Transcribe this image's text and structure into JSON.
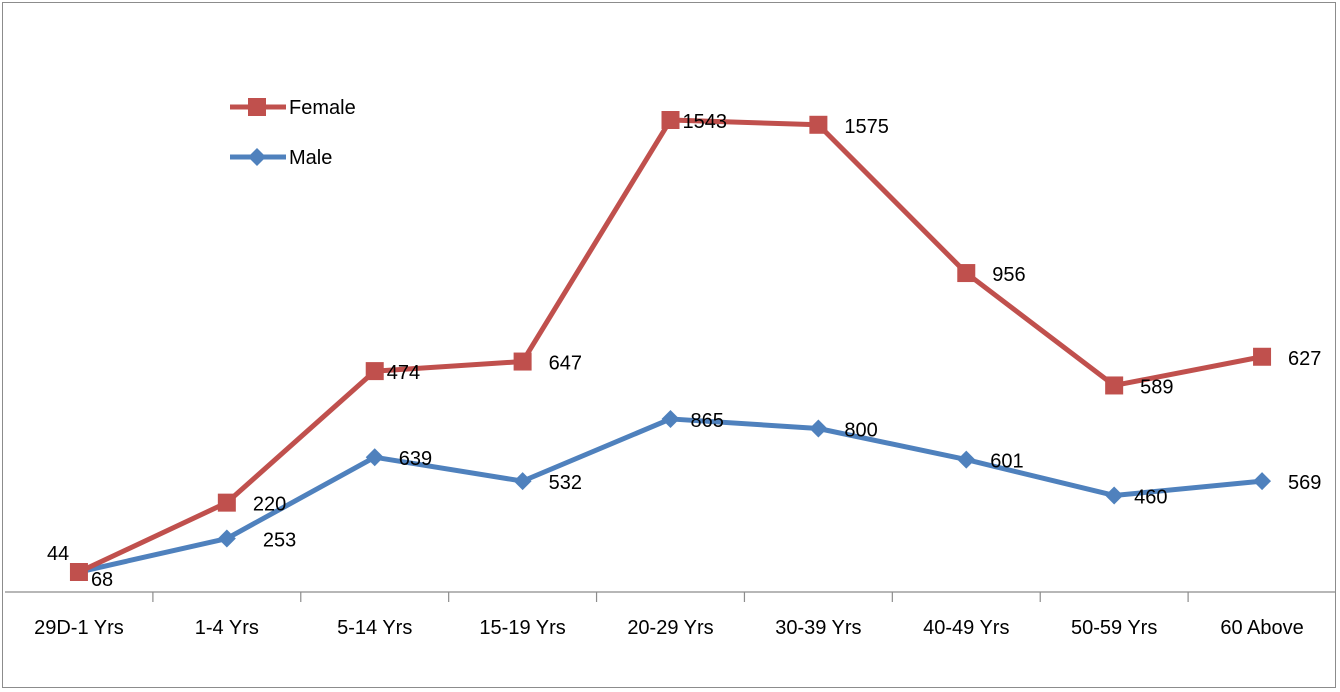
{
  "chart_data": {
    "type": "line",
    "title": "",
    "xlabel": "",
    "ylabel": "",
    "categories": [
      "29D-1 Yrs",
      "1-4 Yrs",
      "5-14 Yrs",
      "15-19 Yrs",
      "20-29 Yrs",
      "30-39 Yrs",
      "40-49 Yrs",
      "50-59 Yrs",
      "60 Above"
    ],
    "series": [
      {
        "name": "Female",
        "color": "#c0504d",
        "marker": "square",
        "values": [
          44,
          220,
          474,
          647,
          1543,
          1575,
          956,
          589,
          627
        ],
        "plot_values": [
          0,
          290,
          840,
          880,
          1890,
          1870,
          1250,
          780,
          900
        ]
      },
      {
        "name": "Male",
        "color": "#4f81bd",
        "marker": "diamond",
        "values": [
          68,
          253,
          639,
          532,
          865,
          800,
          601,
          460,
          569
        ],
        "plot_values": [
          0,
          140,
          480,
          380,
          640,
          600,
          470,
          320,
          380
        ]
      }
    ],
    "y_axis_visible": false,
    "grid": false,
    "legend_position": "top-left"
  }
}
